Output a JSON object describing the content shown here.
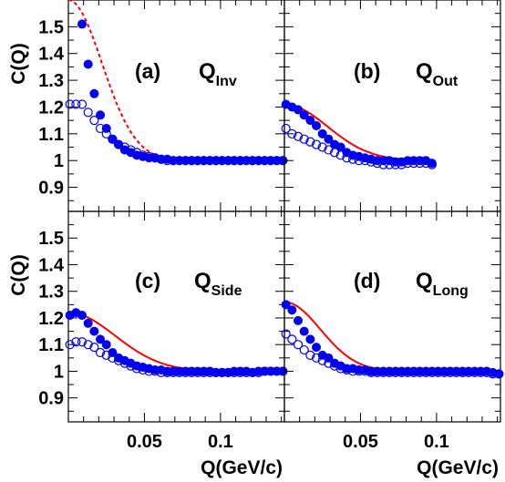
{
  "chart_data": [
    {
      "type": "scatter",
      "panel": "(a)",
      "q_label": "Q",
      "q_sub": "Inv",
      "xlim": [
        0.0,
        0.142
      ],
      "ylim": [
        0.81,
        1.6
      ],
      "ylabel": "C(Q)",
      "yticks": [
        "0.9",
        "1",
        "1.1",
        "1.2",
        "1.3",
        "1.4",
        "1.5"
      ],
      "xticks": [],
      "fit_style": "dashed",
      "series": [
        {
          "marker": "filled",
          "color": "#0000ee",
          "x": [
            0.009,
            0.013,
            0.017,
            0.021,
            0.025,
            0.029,
            0.033,
            0.037,
            0.041,
            0.045,
            0.049,
            0.053,
            0.057,
            0.061,
            0.065,
            0.069,
            0.073,
            0.077,
            0.081,
            0.085,
            0.089,
            0.093,
            0.097,
            0.101,
            0.105,
            0.109,
            0.113,
            0.117,
            0.121,
            0.125,
            0.129,
            0.133,
            0.137,
            0.141
          ],
          "y": [
            1.51,
            1.36,
            1.25,
            1.17,
            1.12,
            1.08,
            1.06,
            1.04,
            1.03,
            1.02,
            1.015,
            1.01,
            1.01,
            1.005,
            1.005,
            1.0,
            1.0,
            1.0,
            1.0,
            1.0,
            1.0,
            1.0,
            1.0,
            1.0,
            1.0,
            1.0,
            1.0,
            1.0,
            1.0,
            1.0,
            1.0,
            1.0,
            1.0,
            1.0
          ]
        },
        {
          "marker": "open",
          "color": "#0000ee",
          "x": [
            0.001,
            0.005,
            0.009,
            0.013,
            0.017,
            0.021,
            0.025,
            0.029,
            0.033,
            0.037,
            0.041,
            0.045,
            0.049,
            0.053,
            0.057,
            0.061,
            0.065,
            0.069,
            0.073,
            0.077,
            0.081,
            0.085,
            0.089,
            0.093,
            0.097,
            0.101,
            0.105,
            0.109,
            0.113,
            0.117,
            0.121,
            0.125,
            0.129,
            0.133,
            0.137,
            0.141
          ],
          "y": [
            1.21,
            1.21,
            1.21,
            1.18,
            1.15,
            1.12,
            1.1,
            1.08,
            1.06,
            1.05,
            1.04,
            1.03,
            1.02,
            1.015,
            1.01,
            1.005,
            1.0,
            1.0,
            1.0,
            1.0,
            1.0,
            1.0,
            1.0,
            1.0,
            1.0,
            1.0,
            1.0,
            1.0,
            1.0,
            1.0,
            1.0,
            1.0,
            1.0,
            1.0,
            1.0,
            1.0
          ]
        }
      ]
    },
    {
      "type": "scatter",
      "panel": "(b)",
      "q_label": "Q",
      "q_sub": "Out",
      "xlim": [
        0.0,
        0.142
      ],
      "ylim": [
        0.81,
        1.6
      ],
      "yticks": [],
      "xticks": [],
      "fit_style": "solid",
      "series": [
        {
          "marker": "filled",
          "color": "#0000ee",
          "x": [
            0.001,
            0.005,
            0.009,
            0.013,
            0.017,
            0.021,
            0.025,
            0.029,
            0.033,
            0.037,
            0.041,
            0.045,
            0.049,
            0.053,
            0.057,
            0.061,
            0.065,
            0.069,
            0.073,
            0.077,
            0.081,
            0.085,
            0.089,
            0.093,
            0.097
          ],
          "y": [
            1.21,
            1.2,
            1.19,
            1.17,
            1.15,
            1.13,
            1.1,
            1.08,
            1.06,
            1.05,
            1.03,
            1.02,
            1.015,
            1.01,
            1.005,
            1.0,
            1.0,
            1.0,
            0.995,
            0.995,
            1.0,
            1.0,
            1.0,
            1.0,
            0.99
          ]
        },
        {
          "marker": "open",
          "color": "#0000ee",
          "x": [
            0.001,
            0.005,
            0.009,
            0.013,
            0.017,
            0.021,
            0.025,
            0.029,
            0.033,
            0.037,
            0.041,
            0.045,
            0.049,
            0.053,
            0.057,
            0.061,
            0.065,
            0.069,
            0.073,
            0.077,
            0.081,
            0.085,
            0.089,
            0.093,
            0.097
          ],
          "y": [
            1.12,
            1.1,
            1.09,
            1.08,
            1.07,
            1.06,
            1.05,
            1.04,
            1.03,
            1.02,
            1.01,
            1.005,
            1.0,
            1.0,
            0.995,
            0.99,
            0.985,
            0.985,
            0.985,
            0.985,
            0.99,
            0.99,
            0.99,
            0.99,
            0.985
          ]
        }
      ]
    },
    {
      "type": "scatter",
      "panel": "(c)",
      "q_label": "Q",
      "q_sub": "Side",
      "xlim": [
        0.0,
        0.142
      ],
      "ylim": [
        0.81,
        1.6
      ],
      "ylabel": "C(Q)",
      "yticks": [
        "0.9",
        "1",
        "1.1",
        "1.2",
        "1.3",
        "1.4",
        "1.5"
      ],
      "xticks": [
        "0.05",
        "0.1"
      ],
      "xlabel": "Q(GeV/c)",
      "fit_style": "solid",
      "series": [
        {
          "marker": "filled",
          "color": "#0000ee",
          "x": [
            0.001,
            0.005,
            0.009,
            0.013,
            0.017,
            0.021,
            0.025,
            0.029,
            0.033,
            0.037,
            0.041,
            0.045,
            0.049,
            0.053,
            0.057,
            0.061,
            0.065,
            0.069,
            0.073,
            0.077,
            0.081,
            0.085,
            0.089,
            0.093,
            0.097,
            0.101,
            0.105,
            0.109,
            0.113,
            0.117,
            0.121,
            0.125,
            0.129,
            0.133,
            0.137,
            0.141
          ],
          "y": [
            1.21,
            1.22,
            1.21,
            1.18,
            1.15,
            1.12,
            1.1,
            1.07,
            1.05,
            1.04,
            1.03,
            1.02,
            1.015,
            1.01,
            1.005,
            1.005,
            1.0,
            1.0,
            1.0,
            1.0,
            1.0,
            1.0,
            1.0,
            1.0,
            0.995,
            0.995,
            0.995,
            1.0,
            1.0,
            1.0,
            0.995,
            1.0,
            1.0,
            1.0,
            1.0,
            1.0
          ]
        },
        {
          "marker": "open",
          "color": "#0000ee",
          "x": [
            0.001,
            0.005,
            0.009,
            0.013,
            0.017,
            0.021,
            0.025,
            0.029,
            0.033,
            0.037,
            0.041,
            0.045,
            0.049,
            0.053,
            0.057,
            0.061,
            0.065,
            0.069,
            0.073,
            0.077,
            0.081,
            0.085,
            0.089,
            0.093,
            0.097,
            0.101,
            0.105,
            0.109,
            0.113,
            0.117,
            0.121,
            0.125,
            0.129,
            0.133,
            0.137,
            0.141
          ],
          "y": [
            1.1,
            1.11,
            1.11,
            1.1,
            1.09,
            1.07,
            1.06,
            1.05,
            1.04,
            1.03,
            1.02,
            1.01,
            1.005,
            1.0,
            1.0,
            0.995,
            0.995,
            0.995,
            0.995,
            0.995,
            0.995,
            0.995,
            0.995,
            0.995,
            0.995,
            0.995,
            0.995,
            0.995,
            0.995,
            0.995,
            0.995,
            0.995,
            1.0,
            1.0,
            1.0,
            1.0
          ]
        }
      ]
    },
    {
      "type": "scatter",
      "panel": "(d)",
      "q_label": "Q",
      "q_sub": "Long",
      "xlim": [
        0.0,
        0.142
      ],
      "ylim": [
        0.81,
        1.6
      ],
      "yticks": [],
      "xticks": [
        "0.05",
        "0.1"
      ],
      "xlabel": "Q(GeV/c)",
      "fit_style": "solid",
      "series": [
        {
          "marker": "filled",
          "color": "#0000ee",
          "x": [
            0.001,
            0.005,
            0.009,
            0.013,
            0.017,
            0.021,
            0.025,
            0.029,
            0.033,
            0.037,
            0.041,
            0.045,
            0.049,
            0.053,
            0.057,
            0.061,
            0.065,
            0.069,
            0.073,
            0.077,
            0.081,
            0.085,
            0.089,
            0.093,
            0.097,
            0.101,
            0.105,
            0.109,
            0.113,
            0.117,
            0.121,
            0.125,
            0.129,
            0.133,
            0.137,
            0.141
          ],
          "y": [
            1.25,
            1.23,
            1.19,
            1.15,
            1.12,
            1.09,
            1.06,
            1.05,
            1.03,
            1.02,
            1.01,
            1.01,
            1.005,
            1.005,
            1.0,
            1.0,
            1.0,
            1.0,
            1.0,
            1.0,
            1.0,
            1.0,
            1.0,
            1.0,
            1.0,
            1.0,
            1.0,
            1.0,
            1.0,
            1.0,
            1.0,
            1.0,
            1.0,
            1.0,
            0.995,
            0.99
          ]
        },
        {
          "marker": "open",
          "color": "#0000ee",
          "x": [
            0.001,
            0.005,
            0.009,
            0.013,
            0.017,
            0.021,
            0.025,
            0.029,
            0.033,
            0.037,
            0.041,
            0.045,
            0.049,
            0.053,
            0.057,
            0.061,
            0.065,
            0.069,
            0.073,
            0.077,
            0.081,
            0.085,
            0.089,
            0.093,
            0.097,
            0.101,
            0.105,
            0.109,
            0.113,
            0.117,
            0.121,
            0.125,
            0.129,
            0.133,
            0.137,
            0.141
          ],
          "y": [
            1.14,
            1.12,
            1.1,
            1.08,
            1.06,
            1.05,
            1.04,
            1.03,
            1.02,
            1.01,
            1.005,
            1.0,
            1.0,
            1.0,
            0.995,
            0.995,
            0.995,
            0.995,
            0.995,
            0.995,
            0.995,
            0.995,
            0.995,
            0.995,
            0.995,
            0.995,
            0.995,
            0.995,
            0.995,
            0.995,
            0.995,
            0.995,
            0.995,
            0.995,
            0.99,
            0.99
          ]
        }
      ]
    }
  ],
  "fit_color": "#ff0000",
  "marker_color": "#0000ee"
}
